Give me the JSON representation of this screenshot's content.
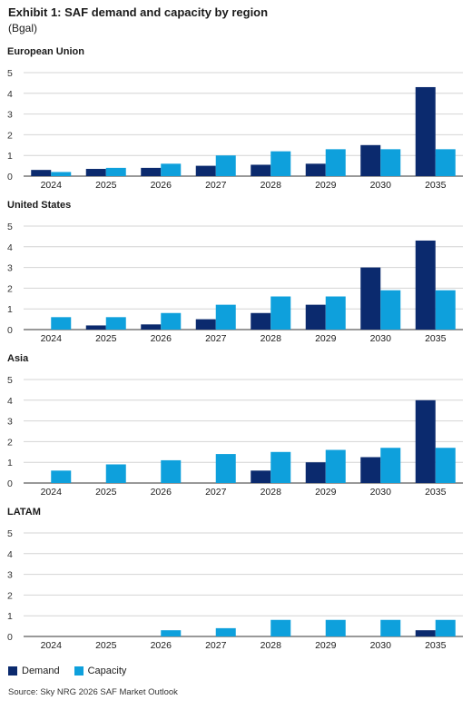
{
  "header": {
    "title": "Exhibit 1: SAF demand and capacity by region",
    "unit": "(Bgal)"
  },
  "legend": {
    "demand_label": "Demand",
    "capacity_label": "Capacity"
  },
  "source": "Source: Sky NRG 2026 SAF Market Outlook",
  "colors": {
    "demand": "#0b2a6e",
    "capacity": "#0ea0dc",
    "grid": "#d4d4d4",
    "axis": "#333333"
  },
  "chart_data": [
    {
      "type": "bar",
      "title": "European Union",
      "categories": [
        "2024",
        "2025",
        "2026",
        "2027",
        "2028",
        "2029",
        "2030",
        "2035"
      ],
      "ylim": [
        0,
        5
      ],
      "yticks": [
        "0",
        "1",
        "2",
        "3",
        "4",
        "5"
      ],
      "series": [
        {
          "name": "Demand",
          "values": [
            0.3,
            0.35,
            0.4,
            0.5,
            0.55,
            0.6,
            1.5,
            4.3
          ]
        },
        {
          "name": "Capacity",
          "values": [
            0.2,
            0.4,
            0.6,
            1.0,
            1.2,
            1.3,
            1.3,
            1.3
          ]
        }
      ]
    },
    {
      "type": "bar",
      "title": "United States",
      "categories": [
        "2024",
        "2025",
        "2026",
        "2027",
        "2028",
        "2029",
        "2030",
        "2035"
      ],
      "ylim": [
        0,
        5
      ],
      "yticks": [
        "0",
        "1",
        "2",
        "3",
        "4",
        "5"
      ],
      "series": [
        {
          "name": "Demand",
          "values": [
            0,
            0.2,
            0.25,
            0.5,
            0.8,
            1.2,
            3.0,
            4.3
          ]
        },
        {
          "name": "Capacity",
          "values": [
            0.6,
            0.6,
            0.8,
            1.2,
            1.6,
            1.6,
            1.9,
            1.9
          ]
        }
      ]
    },
    {
      "type": "bar",
      "title": "Asia",
      "categories": [
        "2024",
        "2025",
        "2026",
        "2027",
        "2028",
        "2029",
        "2030",
        "2035"
      ],
      "ylim": [
        0,
        5
      ],
      "yticks": [
        "0",
        "1",
        "2",
        "3",
        "4",
        "5"
      ],
      "series": [
        {
          "name": "Demand",
          "values": [
            0,
            0,
            0,
            0,
            0.6,
            1.0,
            1.25,
            4.0
          ]
        },
        {
          "name": "Capacity",
          "values": [
            0.6,
            0.9,
            1.1,
            1.4,
            1.5,
            1.6,
            1.7,
            1.7
          ]
        }
      ]
    },
    {
      "type": "bar",
      "title": "LATAM",
      "categories": [
        "2024",
        "2025",
        "2026",
        "2027",
        "2028",
        "2029",
        "2030",
        "2035"
      ],
      "ylim": [
        0,
        5
      ],
      "yticks": [
        "0",
        "1",
        "2",
        "3",
        "4",
        "5"
      ],
      "series": [
        {
          "name": "Demand",
          "values": [
            0,
            0,
            0,
            0,
            0,
            0,
            0,
            0.3
          ]
        },
        {
          "name": "Capacity",
          "values": [
            0,
            0,
            0.3,
            0.4,
            0.8,
            0.8,
            0.8,
            0.8
          ]
        }
      ]
    }
  ]
}
